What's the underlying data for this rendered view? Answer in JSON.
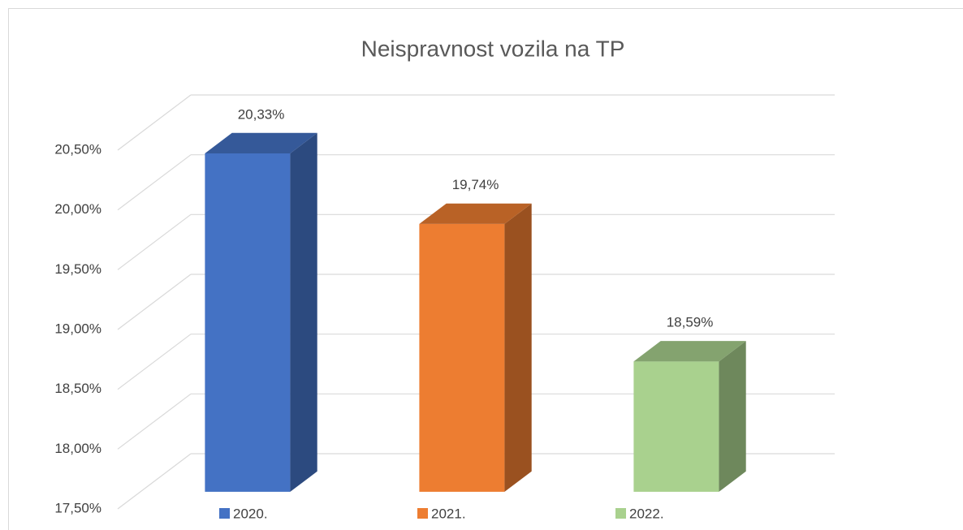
{
  "chart_data": {
    "type": "bar3d",
    "title": "Neispravnost vozila na TP",
    "series": [
      {
        "name": "2020.",
        "color": "#4472c4",
        "values": [
          20.33
        ],
        "value_labels": [
          "20,33%"
        ]
      },
      {
        "name": "2021.",
        "color": "#ed7d31",
        "values": [
          19.74
        ],
        "value_labels": [
          "19,74%"
        ]
      },
      {
        "name": "2022.",
        "color": "#a9d18e",
        "values": [
          18.59
        ],
        "value_labels": [
          "18,59%"
        ]
      }
    ],
    "ylim": [
      17.5,
      20.5
    ],
    "yticks": [
      {
        "value": 17.5,
        "label": "17,50%"
      },
      {
        "value": 18,
        "label": "18,00%"
      },
      {
        "value": 18.5,
        "label": "18,50%"
      },
      {
        "value": 19,
        "label": "19,00%"
      },
      {
        "value": 19.5,
        "label": "19,50%"
      },
      {
        "value": 20,
        "label": "20,00%"
      },
      {
        "value": 20.5,
        "label": "20,50%"
      }
    ],
    "grid": true,
    "legend": "bottom"
  }
}
